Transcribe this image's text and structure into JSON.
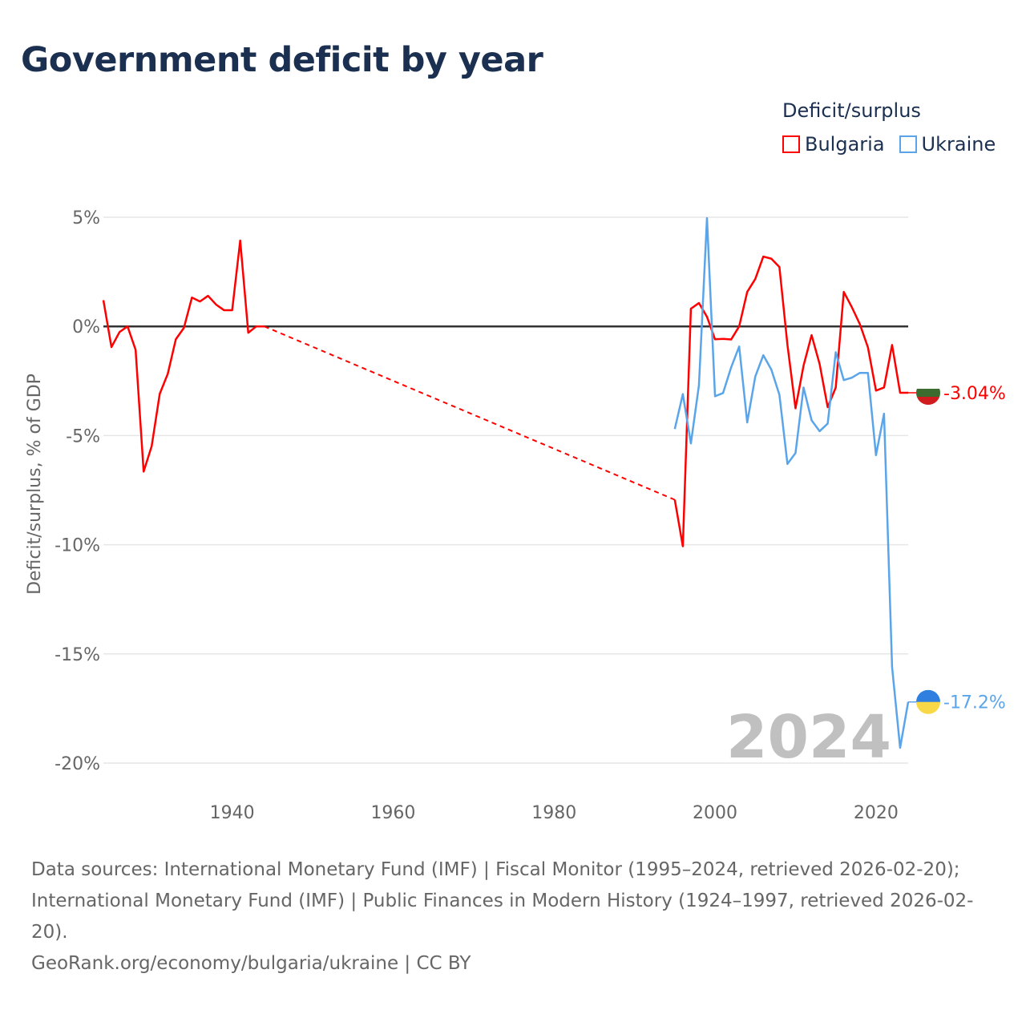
{
  "title": "Government deficit by year",
  "legend": {
    "title": "Deficit/surplus",
    "items": [
      {
        "label": "Bulgaria",
        "color": "#ff0000"
      },
      {
        "label": "Ukraine",
        "color": "#5aa5ea"
      }
    ]
  },
  "footer": {
    "sources": "Data sources: International Monetary Fund (IMF) | Fiscal Monitor (1995–2024, retrieved 2026-02-20); International Monetary Fund (IMF) | Public Finances in Modern History (1924–1997, retrieved 2026-02-20).",
    "credit": "GeoRank.org/economy/bulgaria/ukraine | CC BY"
  },
  "chart_data": {
    "type": "line",
    "title": "Government deficit by year",
    "xlabel": "",
    "ylabel": "Deficit/surplus, % of GDP",
    "xlim": [
      1924,
      2024
    ],
    "ylim": [
      -20,
      5
    ],
    "x_ticks": [
      1940,
      1960,
      1980,
      2000,
      2020
    ],
    "y_ticks": [
      5,
      0,
      -5,
      -10,
      -15,
      -20
    ],
    "y_tick_labels": [
      "5%",
      "0%",
      "-5%",
      "-10%",
      "-15%",
      "-20%"
    ],
    "grid": true,
    "legend_position": "top-right",
    "year_label": "2024",
    "series": [
      {
        "name": "Bulgaria",
        "color": "#ff0000",
        "end_label": "-3.04%",
        "flag_colors": [
          "#ffffff",
          "#3b6b2e",
          "#d01c1f"
        ],
        "x": [
          1924,
          1925,
          1926,
          1927,
          1928,
          1929,
          1930,
          1931,
          1932,
          1933,
          1934,
          1935,
          1936,
          1937,
          1938,
          1939,
          1940,
          1941,
          1942,
          1943,
          1944,
          1995,
          1996,
          1997,
          1998,
          1999,
          2000,
          2001,
          2002,
          2003,
          2004,
          2005,
          2006,
          2007,
          2008,
          2009,
          2010,
          2011,
          2012,
          2013,
          2014,
          2015,
          2016,
          2017,
          2018,
          2019,
          2020,
          2021,
          2022,
          2023,
          2024
        ],
        "values": [
          1.2,
          -0.95,
          -0.26,
          0,
          -1.07,
          -6.65,
          -5.48,
          -3.09,
          -2.17,
          -0.59,
          -0.07,
          1.32,
          1.14,
          1.4,
          1.0,
          0.74,
          0.74,
          3.93,
          -0.29,
          0,
          0,
          -7.94,
          -10.07,
          0.81,
          1.07,
          0.44,
          -0.59,
          -0.57,
          -0.6,
          0,
          1.58,
          2.17,
          3.2,
          3.1,
          2.72,
          -0.85,
          -3.75,
          -1.8,
          -0.4,
          -1.73,
          -3.7,
          -2.8,
          1.58,
          0.88,
          0.1,
          -0.96,
          -2.94,
          -2.8,
          -0.85,
          -3.04,
          -3.04
        ]
      },
      {
        "name": "Ukraine",
        "color": "#5aa5ea",
        "end_label": "-17.2%",
        "flag_colors": [
          "#2f7fe0",
          "#f9d848"
        ],
        "x": [
          1995,
          1996,
          1997,
          1998,
          1999,
          2000,
          2001,
          2002,
          2003,
          2004,
          2005,
          2006,
          2007,
          2008,
          2009,
          2010,
          2011,
          2012,
          2013,
          2014,
          2015,
          2016,
          2017,
          2018,
          2019,
          2020,
          2021,
          2022,
          2023,
          2024
        ],
        "values": [
          -4.7,
          -3.1,
          -5.36,
          -2.7,
          4.96,
          -3.2,
          -3.05,
          -1.88,
          -0.92,
          -4.4,
          -2.3,
          -1.32,
          -1.98,
          -3.13,
          -6.3,
          -5.8,
          -2.8,
          -4.3,
          -4.8,
          -4.45,
          -1.18,
          -2.46,
          -2.35,
          -2.13,
          -2.13,
          -5.9,
          -4.0,
          -15.6,
          -19.3,
          -17.2
        ]
      }
    ]
  }
}
